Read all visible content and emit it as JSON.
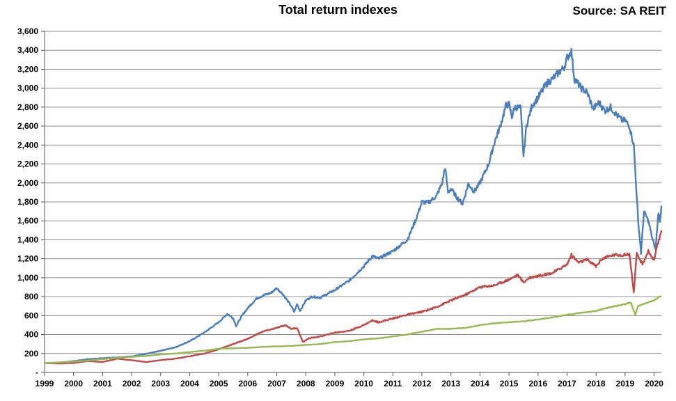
{
  "chart_data": {
    "type": "line",
    "title": "Total return indexes",
    "source": "Source: SA REIT",
    "xlabel": "",
    "ylabel": "",
    "x_tick_labels": [
      "1999",
      "2000",
      "2001",
      "2002",
      "2003",
      "2004",
      "2005",
      "2006",
      "2007",
      "2008",
      "2009",
      "2010",
      "2011",
      "2012",
      "2013",
      "2014",
      "2015",
      "2016",
      "2017",
      "2018",
      "2019",
      "2020"
    ],
    "y_tick_labels": [
      "-",
      "200",
      "400",
      "600",
      "800",
      "1,000",
      "1,200",
      "1,400",
      "1,600",
      "1,800",
      "2,000",
      "2,200",
      "2,400",
      "2,600",
      "2,800",
      "3,000",
      "3,200",
      "3,400",
      "3,600"
    ],
    "xlim": [
      1999,
      2020.25
    ],
    "ylim": [
      0,
      3600
    ],
    "y_step": 200,
    "grid": true,
    "legend": false,
    "series": [
      {
        "color": "#4a7ebb",
        "points": [
          [
            1999.0,
            100
          ],
          [
            1999.5,
            105
          ],
          [
            2000.0,
            120
          ],
          [
            2000.5,
            140
          ],
          [
            2001.0,
            150
          ],
          [
            2001.5,
            160
          ],
          [
            2002.0,
            170
          ],
          [
            2002.5,
            195
          ],
          [
            2003.0,
            230
          ],
          [
            2003.5,
            265
          ],
          [
            2004.0,
            330
          ],
          [
            2004.5,
            420
          ],
          [
            2005.0,
            530
          ],
          [
            2005.3,
            620
          ],
          [
            2005.5,
            570
          ],
          [
            2005.6,
            490
          ],
          [
            2005.8,
            600
          ],
          [
            2006.0,
            680
          ],
          [
            2006.3,
            780
          ],
          [
            2006.6,
            820
          ],
          [
            2006.8,
            840
          ],
          [
            2007.0,
            890
          ],
          [
            2007.2,
            830
          ],
          [
            2007.5,
            700
          ],
          [
            2007.6,
            640
          ],
          [
            2007.7,
            720
          ],
          [
            2007.8,
            650
          ],
          [
            2008.0,
            760
          ],
          [
            2008.2,
            800
          ],
          [
            2008.5,
            790
          ],
          [
            2009.0,
            870
          ],
          [
            2009.5,
            970
          ],
          [
            2010.0,
            1120
          ],
          [
            2010.3,
            1230
          ],
          [
            2010.5,
            1200
          ],
          [
            2011.0,
            1280
          ],
          [
            2011.5,
            1400
          ],
          [
            2011.8,
            1620
          ],
          [
            2012.0,
            1800
          ],
          [
            2012.2,
            1790
          ],
          [
            2012.5,
            1860
          ],
          [
            2012.7,
            2000
          ],
          [
            2012.8,
            2170
          ],
          [
            2012.9,
            1900
          ],
          [
            2013.0,
            1940
          ],
          [
            2013.2,
            1850
          ],
          [
            2013.4,
            1780
          ],
          [
            2013.6,
            1990
          ],
          [
            2013.8,
            1910
          ],
          [
            2014.0,
            2000
          ],
          [
            2014.3,
            2200
          ],
          [
            2014.5,
            2430
          ],
          [
            2014.7,
            2600
          ],
          [
            2014.9,
            2820
          ],
          [
            2015.0,
            2830
          ],
          [
            2015.1,
            2700
          ],
          [
            2015.2,
            2800
          ],
          [
            2015.4,
            2790
          ],
          [
            2015.5,
            2280
          ],
          [
            2015.6,
            2600
          ],
          [
            2015.8,
            2820
          ],
          [
            2016.0,
            2900
          ],
          [
            2016.3,
            3050
          ],
          [
            2016.5,
            3100
          ],
          [
            2016.7,
            3160
          ],
          [
            2016.9,
            3220
          ],
          [
            2017.0,
            3320
          ],
          [
            2017.15,
            3390
          ],
          [
            2017.25,
            3100
          ],
          [
            2017.5,
            3000
          ],
          [
            2017.7,
            2950
          ],
          [
            2017.9,
            2780
          ],
          [
            2018.1,
            2850
          ],
          [
            2018.3,
            2760
          ],
          [
            2018.5,
            2800
          ],
          [
            2018.7,
            2720
          ],
          [
            2018.9,
            2660
          ],
          [
            2019.0,
            2660
          ],
          [
            2019.15,
            2600
          ],
          [
            2019.3,
            2400
          ],
          [
            2019.45,
            1600
          ],
          [
            2019.55,
            1260
          ],
          [
            2019.65,
            1700
          ],
          [
            2019.8,
            1600
          ],
          [
            2019.95,
            1400
          ],
          [
            2020.05,
            1300
          ],
          [
            2020.15,
            1700
          ],
          [
            2020.2,
            1580
          ],
          [
            2020.25,
            1760
          ]
        ]
      },
      {
        "color": "#be4b48",
        "points": [
          [
            1999.0,
            100
          ],
          [
            1999.5,
            95
          ],
          [
            2000.0,
            100
          ],
          [
            2000.5,
            120
          ],
          [
            2001.0,
            110
          ],
          [
            2001.5,
            145
          ],
          [
            2002.0,
            130
          ],
          [
            2002.5,
            110
          ],
          [
            2003.0,
            130
          ],
          [
            2003.5,
            145
          ],
          [
            2004.0,
            170
          ],
          [
            2004.5,
            200
          ],
          [
            2005.0,
            245
          ],
          [
            2005.5,
            300
          ],
          [
            2006.0,
            355
          ],
          [
            2006.5,
            430
          ],
          [
            2007.0,
            470
          ],
          [
            2007.3,
            500
          ],
          [
            2007.5,
            460
          ],
          [
            2007.7,
            470
          ],
          [
            2007.9,
            320
          ],
          [
            2008.1,
            360
          ],
          [
            2008.5,
            380
          ],
          [
            2009.0,
            420
          ],
          [
            2009.5,
            440
          ],
          [
            2010.0,
            500
          ],
          [
            2010.3,
            550
          ],
          [
            2010.5,
            530
          ],
          [
            2011.0,
            570
          ],
          [
            2011.5,
            610
          ],
          [
            2012.0,
            640
          ],
          [
            2012.5,
            690
          ],
          [
            2013.0,
            760
          ],
          [
            2013.5,
            820
          ],
          [
            2014.0,
            900
          ],
          [
            2014.5,
            920
          ],
          [
            2015.0,
            980
          ],
          [
            2015.3,
            1030
          ],
          [
            2015.5,
            950
          ],
          [
            2015.7,
            1000
          ],
          [
            2016.0,
            1020
          ],
          [
            2016.5,
            1050
          ],
          [
            2017.0,
            1140
          ],
          [
            2017.15,
            1240
          ],
          [
            2017.4,
            1160
          ],
          [
            2017.7,
            1190
          ],
          [
            2018.0,
            1120
          ],
          [
            2018.2,
            1200
          ],
          [
            2018.6,
            1240
          ],
          [
            2019.0,
            1240
          ],
          [
            2019.15,
            1250
          ],
          [
            2019.25,
            980
          ],
          [
            2019.3,
            840
          ],
          [
            2019.4,
            1250
          ],
          [
            2019.6,
            1140
          ],
          [
            2019.8,
            1280
          ],
          [
            2020.0,
            1180
          ],
          [
            2020.1,
            1320
          ],
          [
            2020.25,
            1500
          ]
        ]
      },
      {
        "color": "#98b954",
        "points": [
          [
            1999.0,
            100
          ],
          [
            1999.5,
            105
          ],
          [
            2000.0,
            115
          ],
          [
            2000.5,
            125
          ],
          [
            2001.0,
            140
          ],
          [
            2001.5,
            155
          ],
          [
            2002.0,
            165
          ],
          [
            2002.5,
            175
          ],
          [
            2003.0,
            190
          ],
          [
            2003.5,
            200
          ],
          [
            2004.0,
            215
          ],
          [
            2004.5,
            230
          ],
          [
            2005.0,
            250
          ],
          [
            2005.5,
            255
          ],
          [
            2006.0,
            260
          ],
          [
            2006.5,
            270
          ],
          [
            2007.0,
            275
          ],
          [
            2007.5,
            280
          ],
          [
            2008.0,
            290
          ],
          [
            2008.5,
            300
          ],
          [
            2009.0,
            320
          ],
          [
            2009.5,
            330
          ],
          [
            2010.0,
            350
          ],
          [
            2010.5,
            360
          ],
          [
            2011.0,
            380
          ],
          [
            2011.5,
            400
          ],
          [
            2012.0,
            430
          ],
          [
            2012.5,
            460
          ],
          [
            2013.0,
            460
          ],
          [
            2013.5,
            470
          ],
          [
            2014.0,
            500
          ],
          [
            2014.5,
            520
          ],
          [
            2015.0,
            530
          ],
          [
            2015.5,
            540
          ],
          [
            2016.0,
            560
          ],
          [
            2016.5,
            580
          ],
          [
            2017.0,
            610
          ],
          [
            2017.5,
            630
          ],
          [
            2018.0,
            650
          ],
          [
            2018.5,
            690
          ],
          [
            2019.0,
            720
          ],
          [
            2019.2,
            740
          ],
          [
            2019.3,
            650
          ],
          [
            2019.35,
            610
          ],
          [
            2019.45,
            700
          ],
          [
            2019.7,
            730
          ],
          [
            2020.0,
            760
          ],
          [
            2020.25,
            810
          ]
        ]
      }
    ]
  }
}
